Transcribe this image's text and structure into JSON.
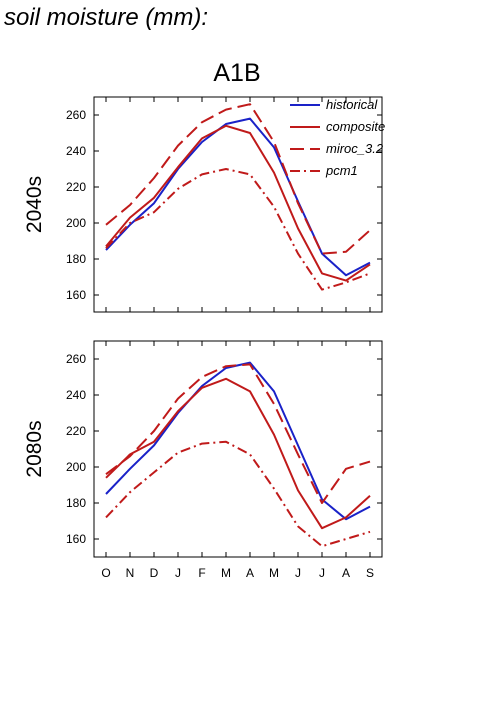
{
  "page": {
    "title": "soil moisture (mm):"
  },
  "chart_data": {
    "type": "line",
    "title": "A1B",
    "x": [
      "O",
      "N",
      "D",
      "J",
      "F",
      "M",
      "A",
      "M",
      "J",
      "J",
      "A",
      "S"
    ],
    "ylim": [
      150,
      270
    ],
    "yticks": [
      160,
      180,
      200,
      220,
      240,
      260
    ],
    "legend": {
      "placement": "top-right",
      "entries": [
        "historical",
        "composite",
        "miroc_3.2",
        "pcm1"
      ]
    },
    "colors": {
      "historical": "#1a22c8",
      "scenario": "#c01a1a"
    },
    "panels": [
      {
        "label": "2040s",
        "series": [
          {
            "name": "historical",
            "style": "solid",
            "values": [
              185,
              199,
              211,
              230,
              245,
              255,
              258,
              242,
              212,
              183,
              171,
              178
            ]
          },
          {
            "name": "composite",
            "style": "solid",
            "values": [
              187,
              203,
              214,
              231,
              247,
              254,
              250,
              228,
              197,
              172,
              168,
              177
            ]
          },
          {
            "name": "miroc_3.2",
            "style": "dash",
            "values": [
              199,
              210,
              225,
              243,
              256,
              263,
              266,
              245,
              211,
              183,
              184,
              196
            ]
          },
          {
            "name": "pcm1",
            "style": "dashdot",
            "values": [
              186,
              200,
              206,
              219,
              227,
              230,
              227,
              209,
              183,
              163,
              167,
              172
            ]
          }
        ]
      },
      {
        "label": "2080s",
        "series": [
          {
            "name": "historical",
            "style": "solid",
            "values": [
              185,
              199,
              212,
              230,
              245,
              255,
              258,
              242,
              212,
              182,
              171,
              178
            ]
          },
          {
            "name": "composite",
            "style": "solid",
            "values": [
              194,
              207,
              214,
              231,
              244,
              249,
              242,
              218,
              187,
              166,
              172,
              184
            ]
          },
          {
            "name": "miroc_3.2",
            "style": "dash",
            "values": [
              196,
              206,
              220,
              238,
              250,
              256,
              257,
              235,
              207,
              180,
              199,
              203
            ]
          },
          {
            "name": "pcm1",
            "style": "dashdot",
            "values": [
              172,
              186,
              197,
              208,
              213,
              214,
              207,
              188,
              167,
              156,
              160,
              164
            ]
          }
        ]
      }
    ]
  }
}
